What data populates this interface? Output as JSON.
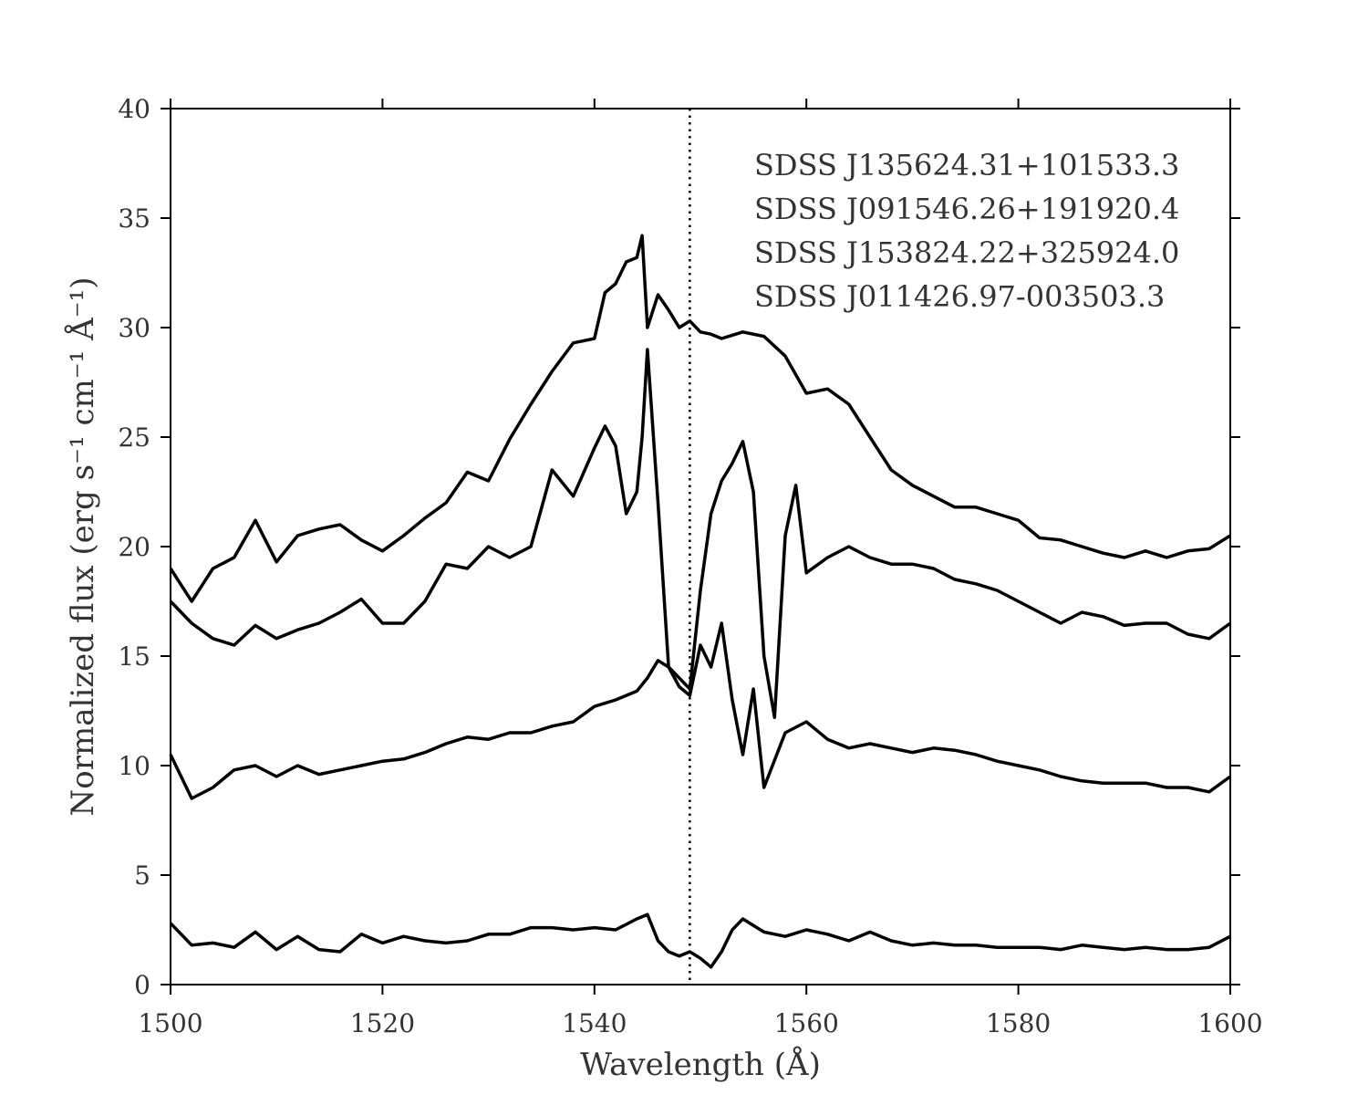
{
  "chart_data": {
    "type": "line",
    "title": "",
    "xlabel": "Wavelength (Å)",
    "ylabel": "Normalized flux (erg s⁻¹ cm⁻¹ Å⁻¹)",
    "xlim": [
      1500,
      1600
    ],
    "ylim": [
      0,
      40
    ],
    "xticks": [
      1500,
      1520,
      1540,
      1560,
      1580,
      1600
    ],
    "yticks": [
      0,
      5,
      10,
      15,
      20,
      25,
      30,
      35,
      40
    ],
    "grid": false,
    "legend_position": "top-right",
    "reference_line": {
      "x": 1549,
      "style": "dotted"
    },
    "legend_entries": [
      "SDSS J135624.31+101533.3",
      "SDSS J091546.26+191920.4",
      "SDSS J153824.22+325924.0",
      "SDSS J011426.97-003503.3"
    ],
    "series": [
      {
        "x": [
          1500,
          1502,
          1504,
          1506,
          1508,
          1510,
          1512,
          1514,
          1516,
          1518,
          1520,
          1522,
          1524,
          1526,
          1528,
          1530,
          1532,
          1534,
          1536,
          1538,
          1540,
          1541,
          1542,
          1543,
          1544,
          1544.5,
          1545,
          1546,
          1547,
          1548,
          1549,
          1550,
          1551,
          1552,
          1554,
          1556,
          1558,
          1560,
          1562,
          1564,
          1566,
          1568,
          1570,
          1572,
          1574,
          1576,
          1578,
          1580,
          1582,
          1584,
          1586,
          1588,
          1590,
          1592,
          1594,
          1596,
          1598,
          1600
        ],
        "values": [
          19.0,
          17.5,
          19.0,
          19.5,
          21.2,
          19.3,
          20.5,
          20.8,
          21.0,
          20.3,
          19.8,
          20.5,
          21.3,
          22.0,
          23.4,
          23.0,
          24.9,
          26.5,
          28.0,
          29.3,
          29.5,
          31.6,
          32.0,
          33.0,
          33.2,
          34.2,
          30.0,
          31.5,
          30.8,
          30.0,
          30.3,
          29.8,
          29.7,
          29.5,
          29.8,
          29.6,
          28.7,
          27.0,
          27.2,
          26.5,
          25.0,
          23.5,
          22.8,
          22.3,
          21.8,
          21.8,
          21.5,
          21.2,
          20.4,
          20.3,
          20.0,
          19.7,
          19.5,
          19.8,
          19.5,
          19.8,
          19.9,
          20.5
        ]
      },
      {
        "x": [
          1500,
          1502,
          1504,
          1506,
          1508,
          1510,
          1512,
          1514,
          1516,
          1518,
          1520,
          1522,
          1524,
          1526,
          1528,
          1530,
          1532,
          1534,
          1536,
          1538,
          1540,
          1541,
          1542,
          1543,
          1544,
          1544.5,
          1545,
          1546,
          1547,
          1548,
          1549,
          1550,
          1551,
          1552,
          1553,
          1554,
          1555,
          1556,
          1557,
          1558,
          1559,
          1560,
          1562,
          1564,
          1566,
          1568,
          1570,
          1572,
          1574,
          1576,
          1578,
          1580,
          1582,
          1584,
          1586,
          1588,
          1590,
          1592,
          1594,
          1596,
          1598,
          1600
        ],
        "values": [
          17.5,
          16.5,
          15.8,
          15.5,
          16.4,
          15.8,
          16.2,
          16.5,
          17.0,
          17.6,
          16.5,
          16.5,
          17.5,
          19.2,
          19.0,
          20.0,
          19.5,
          20.0,
          23.5,
          22.3,
          24.5,
          25.5,
          24.6,
          21.5,
          22.5,
          25.0,
          29.0,
          22.0,
          14.5,
          14.0,
          13.5,
          18.0,
          21.5,
          23.0,
          23.8,
          24.8,
          22.5,
          15.0,
          12.2,
          20.5,
          22.8,
          18.8,
          19.5,
          20.0,
          19.5,
          19.2,
          19.2,
          19.0,
          18.5,
          18.3,
          18.0,
          17.5,
          17.0,
          16.5,
          17.0,
          16.8,
          16.4,
          16.5,
          16.5,
          16.0,
          15.8,
          16.5
        ]
      },
      {
        "x": [
          1500,
          1502,
          1504,
          1506,
          1508,
          1510,
          1512,
          1514,
          1516,
          1518,
          1520,
          1522,
          1524,
          1526,
          1528,
          1530,
          1532,
          1534,
          1536,
          1538,
          1540,
          1542,
          1544,
          1545,
          1546,
          1547,
          1548,
          1549,
          1550,
          1551,
          1552,
          1553,
          1554,
          1555,
          1556,
          1558,
          1560,
          1562,
          1564,
          1566,
          1568,
          1570,
          1572,
          1574,
          1576,
          1578,
          1580,
          1582,
          1584,
          1586,
          1588,
          1590,
          1592,
          1594,
          1596,
          1598,
          1600
        ],
        "values": [
          10.5,
          8.5,
          9.0,
          9.8,
          10.0,
          9.5,
          10.0,
          9.6,
          9.8,
          10.0,
          10.2,
          10.3,
          10.6,
          11.0,
          11.3,
          11.2,
          11.5,
          11.5,
          11.8,
          12.0,
          12.7,
          13.0,
          13.4,
          14.0,
          14.8,
          14.5,
          13.6,
          13.2,
          15.5,
          14.5,
          16.5,
          13.0,
          10.5,
          13.5,
          9.0,
          11.5,
          12.0,
          11.2,
          10.8,
          11.0,
          10.8,
          10.6,
          10.8,
          10.7,
          10.5,
          10.2,
          10.0,
          9.8,
          9.5,
          9.3,
          9.2,
          9.2,
          9.2,
          9.0,
          9.0,
          8.8,
          9.5
        ]
      },
      {
        "x": [
          1500,
          1502,
          1504,
          1506,
          1508,
          1510,
          1512,
          1514,
          1516,
          1518,
          1520,
          1522,
          1524,
          1526,
          1528,
          1530,
          1532,
          1534,
          1536,
          1538,
          1540,
          1542,
          1544,
          1545,
          1546,
          1547,
          1548,
          1549,
          1550,
          1551,
          1552,
          1553,
          1554,
          1556,
          1558,
          1560,
          1562,
          1564,
          1566,
          1568,
          1570,
          1572,
          1574,
          1576,
          1578,
          1580,
          1582,
          1584,
          1586,
          1588,
          1590,
          1592,
          1594,
          1596,
          1598,
          1600
        ],
        "values": [
          2.8,
          1.8,
          1.9,
          1.7,
          2.4,
          1.6,
          2.2,
          1.6,
          1.5,
          2.3,
          1.9,
          2.2,
          2.0,
          1.9,
          2.0,
          2.3,
          2.3,
          2.6,
          2.6,
          2.5,
          2.6,
          2.5,
          3.0,
          3.2,
          2.0,
          1.5,
          1.3,
          1.5,
          1.2,
          0.8,
          1.5,
          2.5,
          3.0,
          2.4,
          2.2,
          2.5,
          2.3,
          2.0,
          2.4,
          2.0,
          1.8,
          1.9,
          1.8,
          1.8,
          1.7,
          1.7,
          1.7,
          1.6,
          1.8,
          1.7,
          1.6,
          1.7,
          1.6,
          1.6,
          1.7,
          2.2
        ]
      }
    ]
  }
}
